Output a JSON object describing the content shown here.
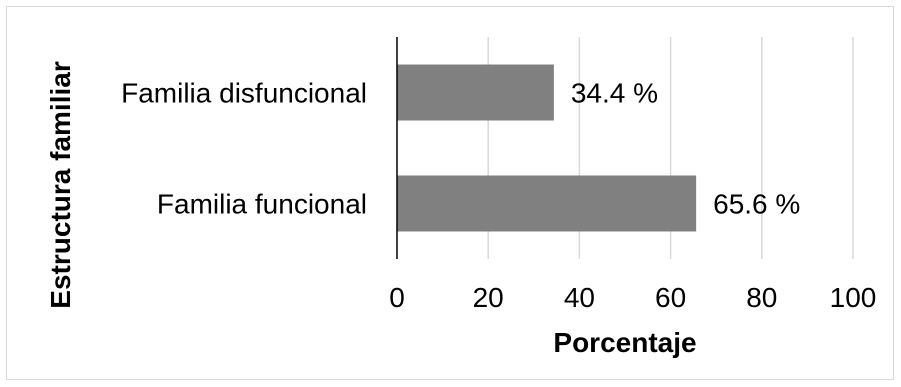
{
  "chart_data": {
    "type": "bar",
    "orientation": "horizontal",
    "categories": [
      "Familia disfuncional",
      "Familia funcional"
    ],
    "values": [
      34.4,
      65.6
    ],
    "value_labels": [
      "34.4 %",
      "65.6 %"
    ],
    "xlabel": "Porcentaje",
    "ylabel": "Estructura familiar",
    "xlim": [
      0,
      100
    ],
    "xticks": [
      0,
      20,
      40,
      60,
      80,
      100
    ],
    "grid": "vertical",
    "legend": "none",
    "bar_color": "#808080",
    "grid_color": "#d9d9d9",
    "axis_color": "#000000"
  }
}
